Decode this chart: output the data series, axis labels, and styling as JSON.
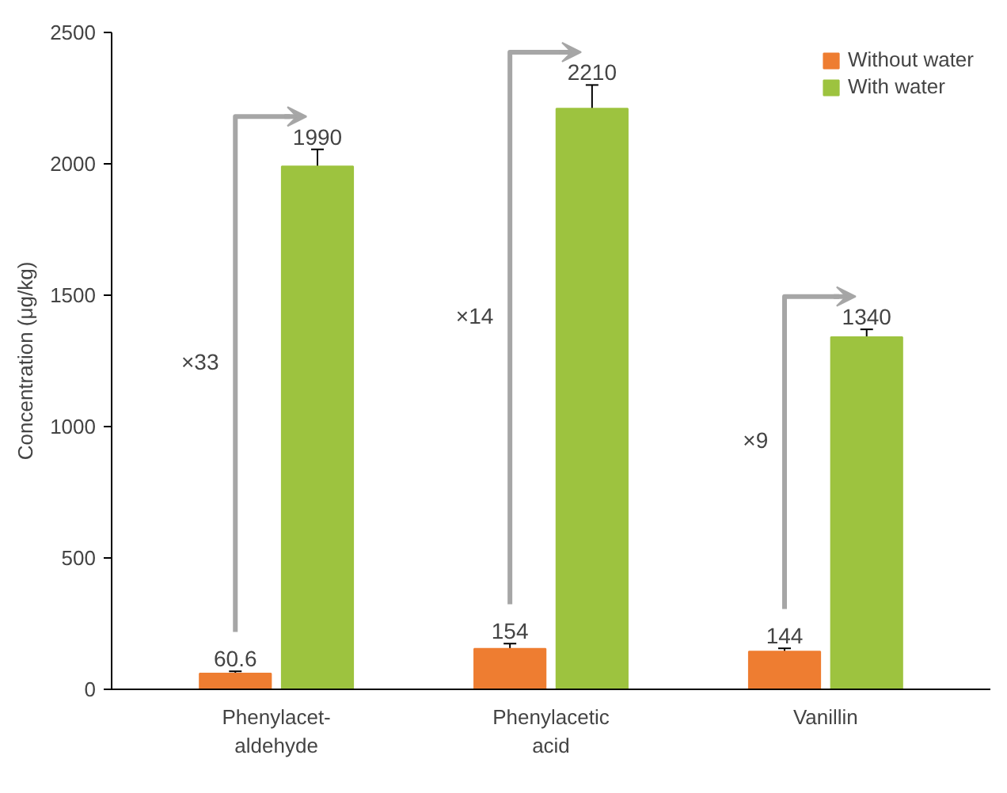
{
  "chart_data": {
    "type": "bar",
    "ylabel": "Concentration (μg/kg)",
    "categories": [
      "Phenylacet-\naldehyde",
      "Phenylacetic\nacid",
      "Vanillin"
    ],
    "series": [
      {
        "name": "Without water",
        "color": "#ee7d31",
        "values": [
          60.6,
          154,
          144
        ],
        "errors": [
          8,
          20,
          12
        ]
      },
      {
        "name": "With water",
        "color": "#9dc33f",
        "values": [
          1990,
          2210,
          1340
        ],
        "errors": [
          65,
          90,
          30
        ]
      }
    ],
    "ylim": [
      0,
      2500
    ],
    "yticks": [
      0,
      500,
      1000,
      1500,
      2000,
      2500
    ],
    "data_labels": true,
    "grid": false,
    "legend": "top right",
    "annotations": [
      "×33",
      "×14",
      "×9"
    ]
  }
}
